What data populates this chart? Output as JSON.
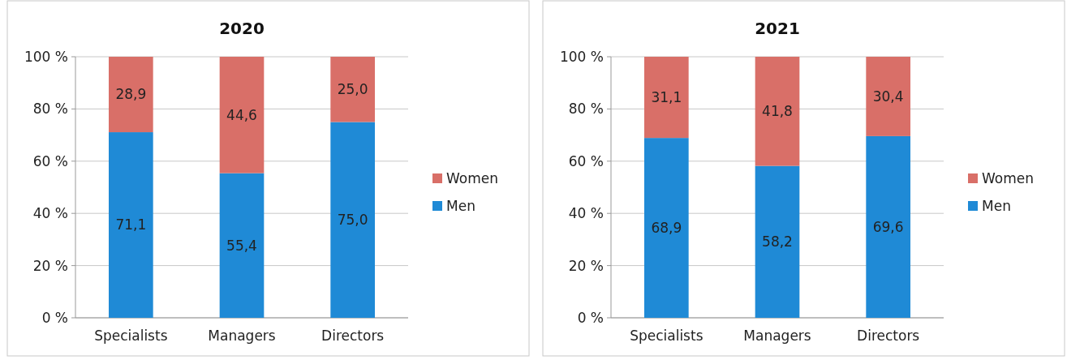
{
  "chart_data": [
    {
      "type": "bar",
      "title": "2020",
      "stacked": true,
      "categories": [
        "Specialists",
        "Managers",
        "Directors"
      ],
      "series": [
        {
          "name": "Men",
          "color": "#1f8ad6",
          "values": [
            71.1,
            55.4,
            75.0
          ],
          "value_labels": [
            "71,1",
            "55,4",
            "75,0"
          ]
        },
        {
          "name": "Women",
          "color": "#d96f68",
          "values": [
            28.9,
            44.6,
            25.0
          ],
          "value_labels": [
            "28,9",
            "44,6",
            "25,0"
          ]
        }
      ],
      "ylim": [
        0,
        100
      ],
      "yticks": [
        {
          "value": 0,
          "label": "0 %"
        },
        {
          "value": 20,
          "label": "20 %"
        },
        {
          "value": 40,
          "label": "40 %"
        },
        {
          "value": 60,
          "label": "60 %"
        },
        {
          "value": 80,
          "label": "80 %"
        },
        {
          "value": 100,
          "label": "100 %"
        }
      ],
      "grid": "y",
      "legend": "right"
    },
    {
      "type": "bar",
      "title": "2021",
      "stacked": true,
      "categories": [
        "Specialists",
        "Managers",
        "Directors"
      ],
      "series": [
        {
          "name": "Men",
          "color": "#1f8ad6",
          "values": [
            68.9,
            58.2,
            69.6
          ],
          "value_labels": [
            "68,9",
            "58,2",
            "69,6"
          ]
        },
        {
          "name": "Women",
          "color": "#d96f68",
          "values": [
            31.1,
            41.8,
            30.4
          ],
          "value_labels": [
            "31,1",
            "41,8",
            "30,4"
          ]
        }
      ],
      "ylim": [
        0,
        100
      ],
      "yticks": [
        {
          "value": 0,
          "label": "0 %"
        },
        {
          "value": 20,
          "label": "20 %"
        },
        {
          "value": 40,
          "label": "40 %"
        },
        {
          "value": 60,
          "label": "60 %"
        },
        {
          "value": 80,
          "label": "80 %"
        },
        {
          "value": 100,
          "label": "100 %"
        }
      ],
      "grid": "y",
      "legend": "right"
    }
  ]
}
